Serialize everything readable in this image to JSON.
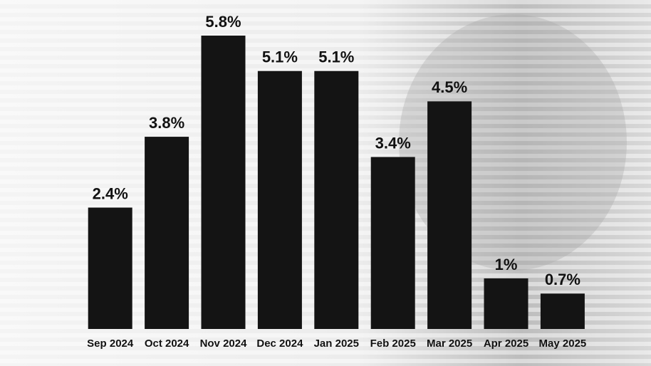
{
  "chart_data": {
    "type": "bar",
    "categories": [
      "Sep 2024",
      "Oct 2024",
      "Nov 2024",
      "Dec 2024",
      "Jan 2025",
      "Feb 2025",
      "Mar 2025",
      "Apr 2025",
      "May 2025"
    ],
    "values": [
      2.4,
      3.8,
      5.8,
      5.1,
      5.1,
      3.4,
      4.5,
      1,
      0.7
    ],
    "value_labels": [
      "2.4%",
      "3.8%",
      "5.8%",
      "5.1%",
      "5.1%",
      "3.4%",
      "4.5%",
      "1%",
      "0.7%"
    ],
    "color": "#141414"
  }
}
